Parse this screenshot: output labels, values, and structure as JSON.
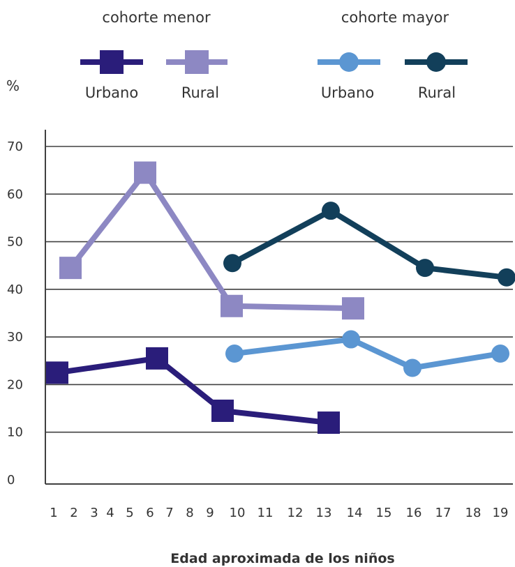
{
  "chart_data": {
    "type": "line",
    "y_unit": "%",
    "xlabel": "Edad aproximada de los niños",
    "ylabel": "",
    "ylim": [
      0,
      70
    ],
    "y_ticks": [
      0,
      10,
      20,
      30,
      40,
      50,
      60,
      70
    ],
    "x_ticks": [
      1,
      2,
      3,
      4,
      5,
      6,
      7,
      8,
      9,
      10,
      11,
      12,
      13,
      14,
      15,
      16,
      17,
      18,
      19
    ],
    "grid": true,
    "legend_position": "top",
    "legend_groups": [
      {
        "title": "cohorte menor",
        "series": [
          0,
          1
        ]
      },
      {
        "title": "cohorte mayor",
        "series": [
          2,
          3
        ]
      }
    ],
    "series": [
      {
        "name": "Urbano",
        "cohort": "cohorte menor",
        "color": "#2a1d7a",
        "marker": "square",
        "points": [
          [
            1,
            22.5
          ],
          [
            6,
            25.5
          ],
          [
            10,
            14.5
          ],
          [
            14,
            12
          ]
        ]
      },
      {
        "name": "Rural",
        "cohort": "cohorte menor",
        "color": "#8d88c3",
        "marker": "square",
        "points": [
          [
            2,
            44.5
          ],
          [
            6,
            64.5
          ],
          [
            10,
            36.5
          ],
          [
            14,
            36
          ]
        ]
      },
      {
        "name": "Urbano",
        "cohort": "cohorte mayor",
        "color": "#5b96d2",
        "marker": "circle",
        "points": [
          [
            10,
            26.5
          ],
          [
            14,
            29.5
          ],
          [
            16,
            23.5
          ],
          [
            19,
            26.5
          ]
        ]
      },
      {
        "name": "Rural",
        "cohort": "cohorte mayor",
        "color": "#123f5a",
        "marker": "circle",
        "points": [
          [
            10,
            45.5
          ],
          [
            13,
            56.5
          ],
          [
            16,
            44.5
          ],
          [
            19,
            42.5
          ]
        ]
      }
    ]
  }
}
